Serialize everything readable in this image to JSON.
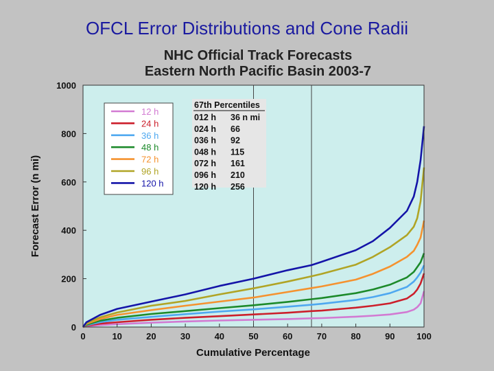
{
  "slide": {
    "title": "OFCL Error Distributions and Cone Radii"
  },
  "chart_data": {
    "type": "line",
    "title": "NHC Official Track Forecasts",
    "subtitle": "Eastern North Pacific Basin 2003-7",
    "xlabel": "Cumulative Percentage",
    "ylabel": "Forecast Error (n mi)",
    "xlim": [
      0,
      100
    ],
    "ylim": [
      0,
      1000
    ],
    "xticks": [
      0,
      10,
      20,
      30,
      40,
      50,
      60,
      70,
      80,
      90,
      100
    ],
    "yticks": [
      0,
      200,
      400,
      600,
      800,
      1000
    ],
    "x_reference_lines": [
      50,
      67
    ],
    "grid": false,
    "legend_position": "top-left",
    "x": [
      0,
      1,
      5,
      10,
      20,
      30,
      40,
      50,
      60,
      67,
      70,
      80,
      85,
      90,
      95,
      97,
      98,
      99,
      100
    ],
    "series": [
      {
        "name": "12 h",
        "color": "#d27ad2",
        "values": [
          0,
          3,
          8,
          12,
          18,
          23,
          27,
          30,
          33,
          36,
          37,
          43,
          47,
          52,
          62,
          72,
          82,
          98,
          148
        ]
      },
      {
        "name": "24 h",
        "color": "#cc1f2b",
        "values": [
          0,
          6,
          14,
          20,
          30,
          38,
          45,
          52,
          59,
          66,
          68,
          80,
          88,
          98,
          118,
          138,
          155,
          180,
          222
        ]
      },
      {
        "name": "36 h",
        "color": "#4ea8f0",
        "values": [
          0,
          8,
          20,
          30,
          42,
          53,
          64,
          73,
          84,
          92,
          96,
          112,
          124,
          140,
          166,
          188,
          205,
          225,
          255
        ]
      },
      {
        "name": "48 h",
        "color": "#1c8a2a",
        "values": [
          0,
          10,
          26,
          38,
          54,
          66,
          78,
          90,
          104,
          115,
          120,
          140,
          155,
          175,
          205,
          228,
          248,
          268,
          305
        ]
      },
      {
        "name": "72 h",
        "color": "#f5922f",
        "values": [
          0,
          13,
          33,
          50,
          70,
          88,
          105,
          122,
          145,
          161,
          168,
          196,
          220,
          250,
          290,
          315,
          340,
          370,
          440
        ]
      },
      {
        "name": "96 h",
        "color": "#b0a425",
        "values": [
          0,
          16,
          40,
          60,
          88,
          108,
          135,
          160,
          188,
          210,
          220,
          258,
          290,
          330,
          380,
          415,
          450,
          520,
          660
        ]
      },
      {
        "name": "120 h",
        "color": "#1414a8",
        "values": [
          0,
          20,
          50,
          75,
          105,
          135,
          170,
          200,
          235,
          256,
          270,
          318,
          355,
          410,
          480,
          540,
          600,
          690,
          830
        ]
      }
    ],
    "percentile_table": {
      "title": "67th Percentiles",
      "rows": [
        [
          "012 h",
          "36 n mi"
        ],
        [
          "024 h",
          "66"
        ],
        [
          "036 h",
          "92"
        ],
        [
          "048 h",
          "115"
        ],
        [
          "072 h",
          "161"
        ],
        [
          "096 h",
          "210"
        ],
        [
          "120 h",
          "256"
        ]
      ]
    },
    "colors": {
      "plot_background": "#cdeeed",
      "page_background": "#c2c2c2",
      "title_color": "#1a1aa0"
    }
  }
}
